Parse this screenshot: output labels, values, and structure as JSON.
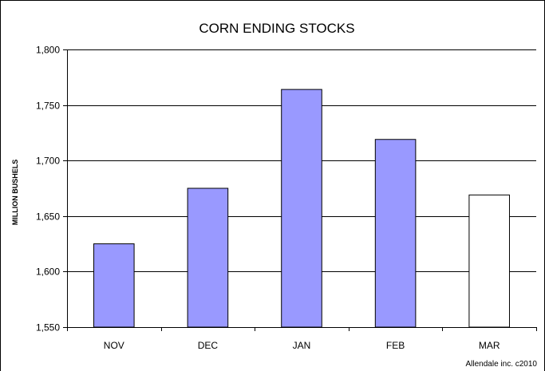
{
  "chart_data": {
    "type": "bar",
    "title": "CORN ENDING STOCKS",
    "xlabel": "",
    "ylabel": "MILLION BUSHELS",
    "categories": [
      "NOV",
      "DEC",
      "JAN",
      "FEB",
      "MAR"
    ],
    "values": [
      1625,
      1675,
      1764,
      1719,
      1669
    ],
    "ylim": [
      1550,
      1800
    ],
    "yticks": [
      1550,
      1600,
      1650,
      1700,
      1750,
      1800
    ],
    "ytick_labels": [
      "1,550",
      "1,600",
      "1,650",
      "1,700",
      "1,750",
      "1,800"
    ],
    "grid": true,
    "legend": "none",
    "bar_colors": [
      "#9999ff",
      "#9999ff",
      "#9999ff",
      "#9999ff",
      "#ffffff"
    ],
    "credit": "Allendale inc. c2010"
  }
}
